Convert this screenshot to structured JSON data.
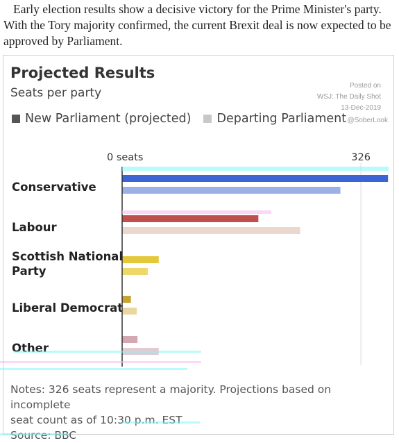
{
  "intro_text": "Early election results show a decisive victory for the Prime Minister's party. With the Tory majority confirmed, the current Brexit deal is now expected to be approved by Parliament.",
  "colors": {
    "new_parliament": "#555555",
    "departing_parliament": "#c8c8c8",
    "conservative_new": "#3b64d4",
    "conservative_old": "#9bb0e6",
    "labour_new": "#c0504d",
    "labour_old": "#ead7cd",
    "snp_new": "#e4c83b",
    "snp_old": "#efd86a",
    "libdem_new": "#c7a332",
    "libdem_old": "#ead7a0",
    "other_new": "#d4a7b3",
    "other_old": "#e8c8d0"
  },
  "chart_data": {
    "type": "bar",
    "orientation": "horizontal",
    "title": "Projected Results",
    "subtitle": "Seats per party",
    "categories": [
      "Conservative",
      "Labour",
      "Scottish National Party",
      "Liberal Democrat",
      "Other"
    ],
    "series": [
      {
        "name": "New Parliament (projected)",
        "values": [
          363,
          186,
          50,
          12,
          21
        ]
      },
      {
        "name": "Departing Parliament",
        "values": [
          298,
          243,
          35,
          20,
          50
        ]
      }
    ],
    "xlim": [
      0,
      360
    ],
    "x_ticks": [
      {
        "value": 0,
        "label": "0 seats"
      },
      {
        "value": 326,
        "label": "326"
      }
    ],
    "grid": false,
    "legend_position": "top-left"
  },
  "source_block": {
    "line1": "Posted on",
    "line2": "WSJ: The Daily Shot",
    "line3": "13-Dec-2019",
    "line4": "@SoberLook"
  },
  "notes": {
    "line1": "Notes: 326 seats represent a majority. Projections based on incomplete",
    "line2": "seat count as of 10:30 p.m. EST",
    "line3": "Source: BBC"
  }
}
